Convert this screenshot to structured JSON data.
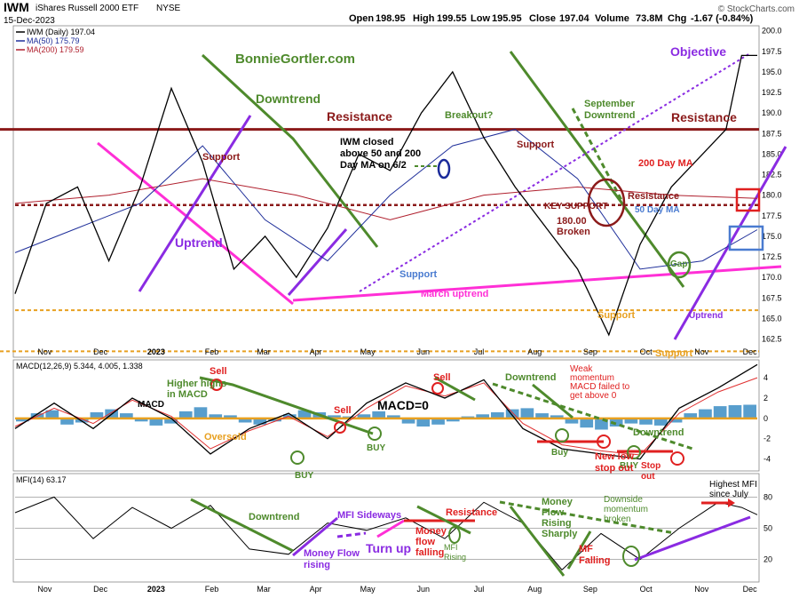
{
  "header": {
    "ticker": "IWM",
    "name": "iShares Russell 2000 ETF",
    "exchange": "NYSE",
    "date": "15-Dec-2023",
    "open_label": "Open",
    "open": "198.95",
    "high_label": "High",
    "high": "199.55",
    "low_label": "Low",
    "low": "195.95",
    "close_label": "Close",
    "close": "197.04",
    "volume_label": "Volume",
    "volume": "73.8M",
    "chg_label": "Chg",
    "chg": "-1.67 (-0.84%)",
    "credit": "© StockCharts.com"
  },
  "legend": {
    "price": "IWM (Daily) 197.04",
    "ma50": "MA(50) 175.79",
    "ma200": "MA(200) 179.59"
  },
  "colors": {
    "price": "#000000",
    "ma50": "#1f2f9a",
    "ma200": "#b0202e",
    "green": "#4e8a2c",
    "purple": "#8a2be2",
    "magenta": "#ff2fd6",
    "orange": "#e8a020",
    "darkred": "#8b1a1a",
    "red": "#e02020",
    "blue": "#4a7bd0",
    "hist": "#2e86c1",
    "signal": "#e03030"
  },
  "months": [
    {
      "label": "Nov",
      "t": 0.04
    },
    {
      "label": "Dec",
      "t": 0.115
    },
    {
      "label": "2023",
      "t": 0.19
    },
    {
      "label": "Feb",
      "t": 0.265
    },
    {
      "label": "Mar",
      "t": 0.335
    },
    {
      "label": "Apr",
      "t": 0.405
    },
    {
      "label": "May",
      "t": 0.475
    },
    {
      "label": "Jun",
      "t": 0.55
    },
    {
      "label": "Jul",
      "t": 0.625
    },
    {
      "label": "Aug",
      "t": 0.7
    },
    {
      "label": "Sep",
      "t": 0.775
    },
    {
      "label": "Oct",
      "t": 0.85
    },
    {
      "label": "Nov",
      "t": 0.925
    },
    {
      "label": "Dec",
      "t": 0.99
    }
  ],
  "chart_data": [
    {
      "type": "line",
      "panel": "price",
      "title": "IWM iShares Russell 2000 ETF NYSE",
      "y_ticks": [
        "200.0",
        "197.5",
        "195.0",
        "192.5",
        "190.0",
        "187.5",
        "185.0",
        "182.5",
        "180.0",
        "177.5",
        "175.0",
        "172.5",
        "170.0",
        "167.5",
        "165.0",
        "162.5"
      ],
      "ylim": [
        160.5,
        200.5
      ],
      "x_end": 190,
      "series": [
        {
          "name": "IWM",
          "x": [
            0,
            8,
            16,
            24,
            32,
            40,
            48,
            56,
            64,
            72,
            80,
            88,
            96,
            104,
            112,
            120,
            128,
            136,
            144,
            152,
            160,
            168,
            176,
            182,
            186,
            190
          ],
          "values": [
            168,
            179,
            181,
            172,
            181,
            193,
            184,
            171,
            175,
            170,
            176,
            185,
            183,
            190,
            195,
            187,
            181,
            176,
            171,
            163,
            174,
            181,
            185,
            188,
            197,
            197
          ]
        },
        {
          "name": "MA(50) 175.79",
          "x": [
            0,
            16,
            32,
            48,
            64,
            80,
            96,
            112,
            128,
            144,
            160,
            176,
            190
          ],
          "values": [
            173,
            176,
            179,
            186,
            177,
            172,
            180,
            186,
            188,
            182,
            171,
            172,
            175.8
          ]
        },
        {
          "name": "MA(200) 179.59",
          "x": [
            0,
            24,
            48,
            72,
            96,
            120,
            144,
            168,
            190
          ],
          "values": [
            179,
            180,
            182,
            180,
            177,
            180,
            181,
            180,
            179.6
          ]
        }
      ],
      "levels": {
        "resistance": 188.0,
        "key_support": 178.8,
        "support_low": 166.0,
        "support_base": 161.0
      }
    },
    {
      "type": "line",
      "panel": "macd",
      "title": "MACD(12,26,9) 5.344, 4.005, 1.338",
      "y_ticks": [
        "4",
        "2",
        "0",
        "-2",
        "-4"
      ],
      "ylim": [
        -5,
        5.5
      ],
      "series": [
        {
          "name": "MACD",
          "x": [
            0,
            10,
            20,
            30,
            40,
            50,
            60,
            70,
            80,
            90,
            100,
            110,
            120,
            130,
            140,
            150,
            160,
            170,
            180,
            190
          ],
          "values": [
            -1,
            1.5,
            -1,
            2,
            0,
            -3.5,
            -1,
            0.5,
            -2,
            1.5,
            3.5,
            2,
            3.8,
            -1,
            -3,
            -3.5,
            -4,
            1,
            3,
            5.3
          ]
        },
        {
          "name": "Signal",
          "x": [
            0,
            10,
            20,
            30,
            40,
            50,
            60,
            70,
            80,
            90,
            100,
            110,
            120,
            130,
            140,
            150,
            160,
            170,
            180,
            190
          ],
          "values": [
            -0.8,
            1,
            -0.5,
            1.8,
            0.2,
            -3,
            -1.2,
            0.2,
            -1.8,
            1,
            3.2,
            2.2,
            3.5,
            -0.5,
            -2.6,
            -3.2,
            -3.6,
            0.5,
            2.6,
            4.0
          ]
        }
      ],
      "histogram": [
        -0.3,
        0.5,
        0.8,
        -0.6,
        -0.4,
        0.6,
        0.9,
        0.5,
        -0.3,
        -0.7,
        -0.5,
        0.7,
        1.1,
        0.4,
        0.3,
        -0.4,
        -0.6,
        -0.3,
        0.4,
        0.8,
        0.6,
        0.3,
        0.2,
        0.4,
        0.7,
        0.3,
        -0.5,
        -0.8,
        -0.6,
        -0.3,
        0.2,
        0.4,
        0.6,
        0.9,
        1.0,
        0.5,
        0.3,
        -0.5,
        -0.9,
        -1.1,
        -0.8,
        -0.5,
        -0.6,
        -0.7,
        -0.4,
        0.5,
        0.9,
        1.2,
        1.3,
        1.34
      ]
    },
    {
      "type": "line",
      "panel": "mfi",
      "title": "MFI(14) 63.17",
      "y_ticks": [
        "80",
        "50",
        "20"
      ],
      "ylim": [
        0,
        100
      ],
      "series": [
        {
          "name": "MFI",
          "x": [
            0,
            10,
            20,
            30,
            40,
            50,
            60,
            70,
            80,
            90,
            100,
            110,
            120,
            130,
            140,
            150,
            160,
            170,
            180,
            186,
            190
          ],
          "values": [
            65,
            80,
            40,
            70,
            50,
            72,
            30,
            25,
            55,
            48,
            60,
            40,
            75,
            55,
            10,
            45,
            20,
            50,
            75,
            70,
            63
          ]
        }
      ]
    }
  ],
  "annotations": {
    "site": "BonnieGortler.com",
    "downtrend": "Downtrend",
    "uptrend": "Uptrend",
    "resistance_left": "Resistance",
    "resistance_right": "Resistance",
    "support_feb": "Support",
    "support_jun": "Support",
    "support_aug": "Support",
    "support_oct": "Support",
    "support_nov": "Support",
    "iwm_closed_1": "IWM closed",
    "iwm_closed_2": "above 50 and 200",
    "iwm_closed_3": "Day MA on 6/2",
    "breakout": "Breakout?",
    "sept_down_1": "September",
    "sept_down_2": "Downtrend",
    "key_support": "KEY SUPPORT",
    "broken_1": "180.00",
    "broken_2": "Broken",
    "ma200_label": "200 Day MA",
    "resistance_small": "Resistance",
    "ma50_label": "50 Day MA",
    "march_uptrend": "March uptrend",
    "gap": "Gap",
    "uptrend_small": "Uptrend",
    "objective": "Objective",
    "macd_higher_1": "Higher highs",
    "macd_higher_2": "in MACD",
    "macd_sell1": "Sell",
    "macd_sell2": "Sell",
    "macd_sell3": "Sell",
    "macd_label": "MACD",
    "macd_zero": "MACD=0",
    "oversold": "Oversold",
    "buy1": "BUY",
    "buy2": "BUY",
    "buy3": "Buy",
    "buy4": "BUY",
    "macd_downtrend1": "Downtrend",
    "macd_downtrend2": "Downtrend",
    "weak_1": "Weak",
    "weak_2": "momentum",
    "weak_3": "MACD failed to",
    "weak_4": "get above 0",
    "new_low_1": "New low",
    "new_low_2": "stop out",
    "stop_1": "Stop",
    "stop_2": "out",
    "mfi_downtrend": "Downtrend",
    "mfi_sideways": "MFI Sideways",
    "money_flow_1": "Money Flow",
    "money_flow_2": "rising",
    "turn_up": "Turn up",
    "mfi_resistance": "Resistance",
    "mf_falling_1": "Money",
    "mf_falling_2": "flow",
    "mf_falling_3": "falling",
    "mfi_rising_1": "MFI",
    "mfi_rising_2": "Rising",
    "mf_sharp_1": "Money",
    "mf_sharp_2": "Flow",
    "mf_sharp_3": "Rising",
    "mf_sharp_4": "Sharply",
    "mf_fall_1": "MF",
    "mf_fall_2": "Falling",
    "downside_1": "Downside",
    "downside_2": "momentum",
    "downside_3": "broken",
    "highest_1": "Highest MFI",
    "highest_2": "since July"
  }
}
